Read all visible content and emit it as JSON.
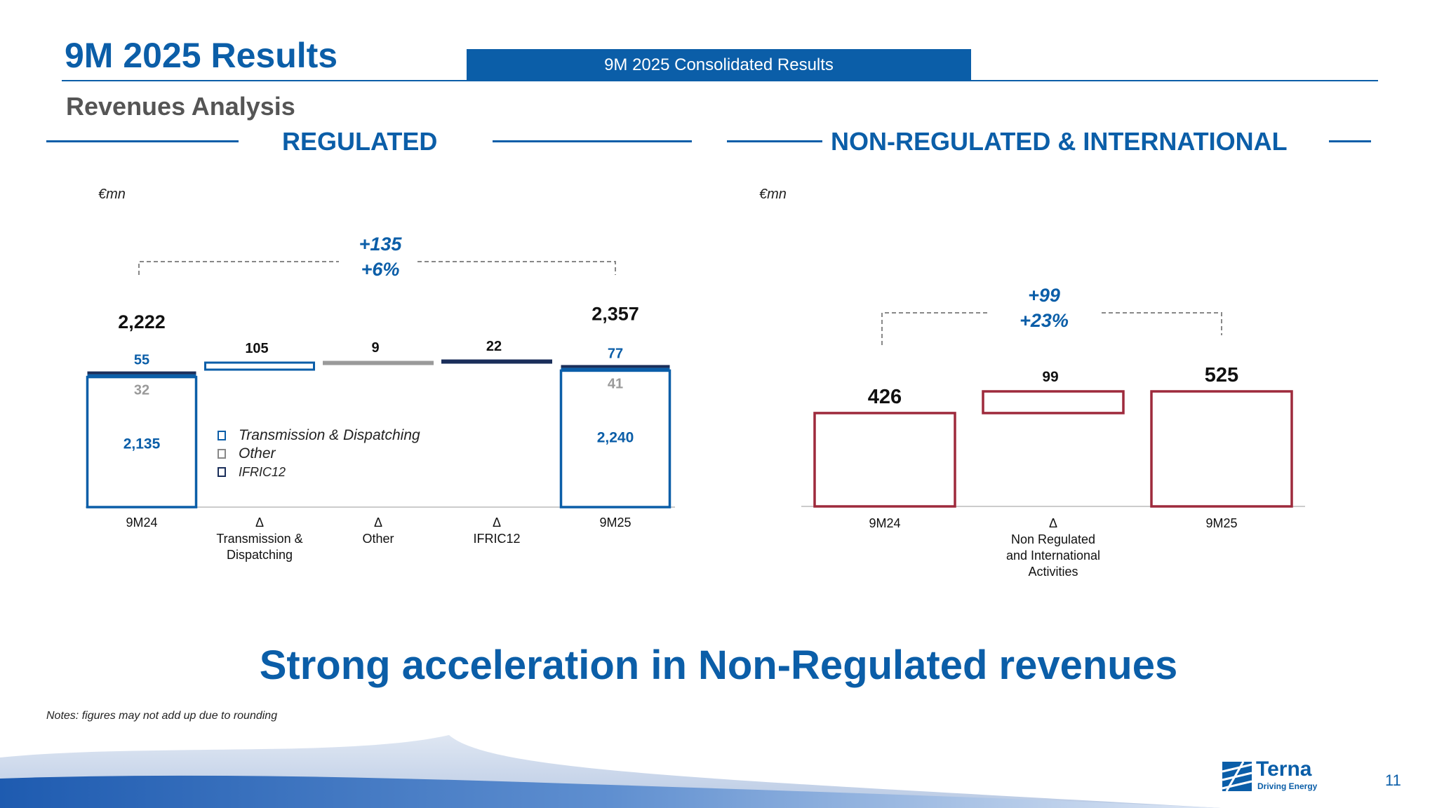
{
  "header": {
    "title": "9M 2025 Results",
    "tag": "9M 2025 Consolidated Results",
    "subtitle": "Revenues Analysis"
  },
  "sections": {
    "regulated": {
      "title": "REGULATED",
      "unit": "€mn"
    },
    "nonregulated": {
      "title": "NON-REGULATED & INTERNATIONAL",
      "unit": "€mn"
    }
  },
  "legend": {
    "items": [
      {
        "label": "Transmission & Dispatching",
        "color": "#0b5ea8"
      },
      {
        "label": "Other",
        "color": "#888888"
      },
      {
        "label": "IFRIC12",
        "color": "#1a2e5a"
      }
    ]
  },
  "colors": {
    "brand_blue": "#0b5ea8",
    "other_gray": "#9a9a9a",
    "ifric_navy": "#1a2e5a",
    "nonreg_red": "#9e2a3c"
  },
  "chart_data": [
    {
      "type": "bar",
      "subtype": "waterfall",
      "categories": [
        "9M24",
        "Δ\nTransmission &\nDispatching",
        "Δ\nOther",
        "Δ\nIFRIC12",
        "9M25"
      ],
      "series": [
        {
          "name": "Transmission & Dispatching",
          "values": [
            2135,
            null,
            null,
            null,
            2240
          ]
        },
        {
          "name": "Other",
          "values": [
            32,
            null,
            null,
            null,
            41
          ]
        },
        {
          "name": "IFRIC12",
          "values": [
            55,
            null,
            null,
            null,
            77
          ]
        }
      ],
      "deltas": [
        null,
        105,
        9,
        22,
        null
      ],
      "totals": [
        2222,
        null,
        null,
        null,
        2357
      ],
      "bridge_labels": {
        "abs": "+135",
        "pct": "+6%"
      },
      "ylabel": "€mn",
      "legend": "inside-left"
    },
    {
      "type": "bar",
      "subtype": "waterfall",
      "categories": [
        "9M24",
        "Δ\nNon Regulated\nand International\nActivities",
        "9M25"
      ],
      "values": [
        426,
        99,
        525
      ],
      "bridge_labels": {
        "abs": "+99",
        "pct": "+23%"
      },
      "ylabel": "€mn"
    }
  ],
  "headline": "Strong acceleration in Non-Regulated revenues",
  "note": "Notes: figures may not add up due to rounding",
  "logo": {
    "name": "Terna",
    "tagline": "Driving Energy"
  },
  "page_number": "11"
}
